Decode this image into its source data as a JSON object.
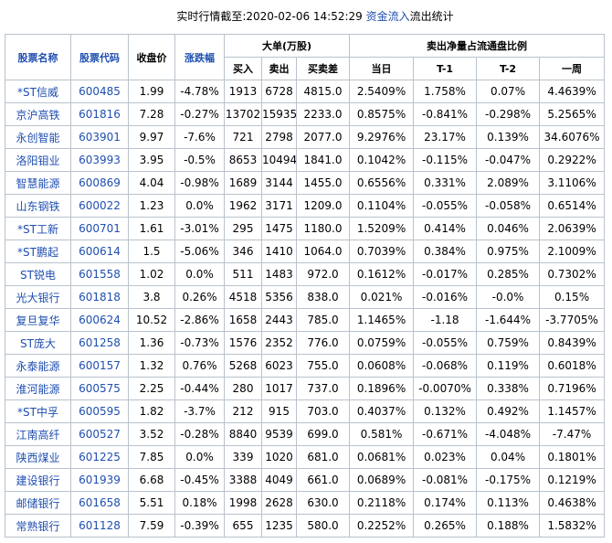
{
  "header": {
    "title_prefix": "实时行情截至:2020-02-06 14:52:29",
    "title_link": "资金流入",
    "title_suffix": "流出统计"
  },
  "table": {
    "columns": [
      "股票名称",
      "股票代码",
      "收盘价",
      "涨跌幅"
    ],
    "group_big_order": {
      "title": "大单(万股)",
      "columns": [
        "买入",
        "卖出",
        "买卖差"
      ]
    },
    "group_ratio": {
      "title": "卖出净量占流通盘比例",
      "columns": [
        "当日",
        "T-1",
        "T-2",
        "一周"
      ]
    },
    "rows": [
      [
        "*ST信威",
        "600485",
        "1.99",
        "-4.78%",
        "1913",
        "6728",
        "4815.0",
        "2.5409%",
        "1.758%",
        "0.07%",
        "4.4639%"
      ],
      [
        "京沪高铁",
        "601816",
        "7.28",
        "-0.27%",
        "13702",
        "15935",
        "2233.0",
        "0.8575%",
        "-0.841%",
        "-0.298%",
        "5.2565%"
      ],
      [
        "永创智能",
        "603901",
        "9.97",
        "-7.6%",
        "721",
        "2798",
        "2077.0",
        "9.2976%",
        "23.17%",
        "0.139%",
        "34.6076%"
      ],
      [
        "洛阳钼业",
        "603993",
        "3.95",
        "-0.5%",
        "8653",
        "10494",
        "1841.0",
        "0.1042%",
        "-0.115%",
        "-0.047%",
        "0.2922%"
      ],
      [
        "智慧能源",
        "600869",
        "4.04",
        "-0.98%",
        "1689",
        "3144",
        "1455.0",
        "0.6556%",
        "0.331%",
        "2.089%",
        "3.1106%"
      ],
      [
        "山东钢铁",
        "600022",
        "1.23",
        "0.0%",
        "1962",
        "3171",
        "1209.0",
        "0.1104%",
        "-0.055%",
        "-0.058%",
        "0.6514%"
      ],
      [
        "*ST工新",
        "600701",
        "1.61",
        "-3.01%",
        "295",
        "1475",
        "1180.0",
        "1.5209%",
        "0.414%",
        "0.046%",
        "2.0639%"
      ],
      [
        "*ST鹏起",
        "600614",
        "1.5",
        "-5.06%",
        "346",
        "1410",
        "1064.0",
        "0.7039%",
        "0.384%",
        "0.975%",
        "2.1009%"
      ],
      [
        "ST锐电",
        "601558",
        "1.02",
        "0.0%",
        "511",
        "1483",
        "972.0",
        "0.1612%",
        "-0.017%",
        "0.285%",
        "0.7302%"
      ],
      [
        "光大银行",
        "601818",
        "3.8",
        "0.26%",
        "4518",
        "5356",
        "838.0",
        "0.021%",
        "-0.016%",
        "-0.0%",
        "0.15%"
      ],
      [
        "复旦复华",
        "600624",
        "10.52",
        "-2.86%",
        "1658",
        "2443",
        "785.0",
        "1.1465%",
        "-1.18",
        "-1.644%",
        "-3.7705%"
      ],
      [
        "ST庞大",
        "601258",
        "1.36",
        "-0.73%",
        "1576",
        "2352",
        "776.0",
        "0.0759%",
        "-0.055%",
        "0.759%",
        "0.8439%"
      ],
      [
        "永泰能源",
        "600157",
        "1.32",
        "0.76%",
        "5268",
        "6023",
        "755.0",
        "0.0608%",
        "-0.068%",
        "0.119%",
        "0.6018%"
      ],
      [
        "淮河能源",
        "600575",
        "2.25",
        "-0.44%",
        "280",
        "1017",
        "737.0",
        "0.1896%",
        "-0.0070%",
        "0.338%",
        "0.7196%"
      ],
      [
        "*ST中孚",
        "600595",
        "1.82",
        "-3.7%",
        "212",
        "915",
        "703.0",
        "0.4037%",
        "0.132%",
        "0.492%",
        "1.1457%"
      ],
      [
        "江南高纤",
        "600527",
        "3.52",
        "-0.28%",
        "8840",
        "9539",
        "699.0",
        "0.581%",
        "-0.671%",
        "-4.048%",
        "-7.47%"
      ],
      [
        "陕西煤业",
        "601225",
        "7.85",
        "0.0%",
        "339",
        "1020",
        "681.0",
        "0.0681%",
        "0.023%",
        "0.04%",
        "0.1801%"
      ],
      [
        "建设银行",
        "601939",
        "6.68",
        "-0.45%",
        "3388",
        "4049",
        "661.0",
        "0.0689%",
        "-0.081%",
        "-0.175%",
        "0.1219%"
      ],
      [
        "邮储银行",
        "601658",
        "5.51",
        "0.18%",
        "1998",
        "2628",
        "630.0",
        "0.2118%",
        "0.174%",
        "0.113%",
        "0.4638%"
      ],
      [
        "常熟银行",
        "601128",
        "7.59",
        "-0.39%",
        "655",
        "1235",
        "580.0",
        "0.2252%",
        "0.265%",
        "0.188%",
        "1.5832%"
      ]
    ]
  }
}
